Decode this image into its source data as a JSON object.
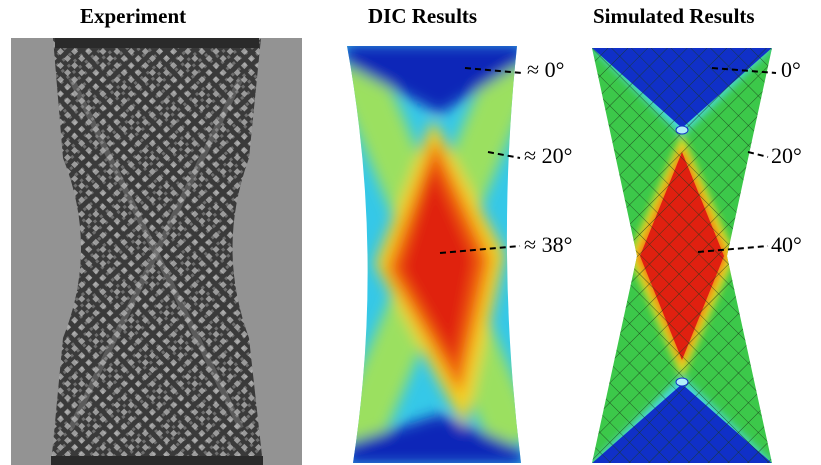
{
  "titles": {
    "experiment": "Experiment",
    "dic": "DIC Results",
    "simulated": "Simulated Results"
  },
  "dic_labels": [
    "≈ 0°",
    "≈ 20°",
    "≈ 38°"
  ],
  "sim_labels": [
    "0°",
    "20°",
    "40°"
  ],
  "colors": {
    "blue": "#1030c8",
    "cyan": "#40d8f0",
    "green": "#30c040",
    "yellow": "#f0e020",
    "orange": "#f07010",
    "red": "#e02010",
    "specimen_gray": "#8f8f8f",
    "lattice_dark": "#2a2a2a"
  }
}
